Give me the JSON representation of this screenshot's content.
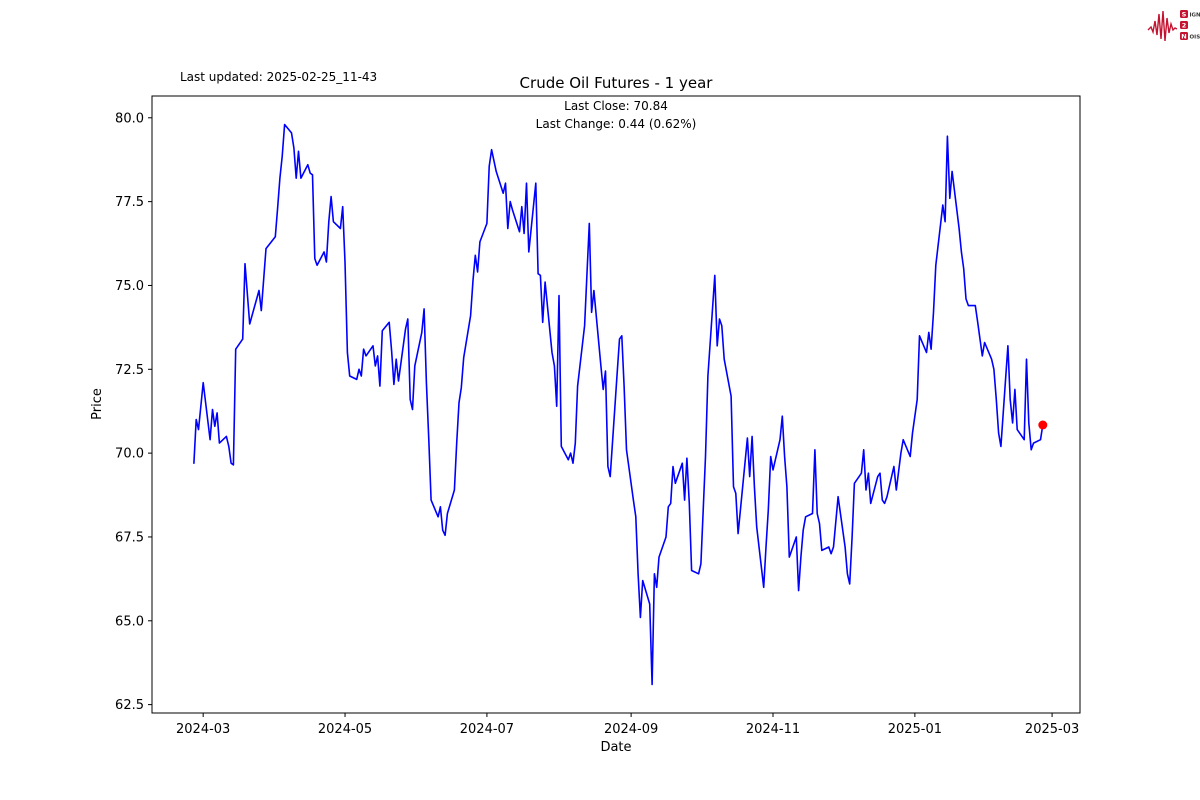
{
  "logo": {
    "color": "#c41230",
    "text_color": "#3a3a3a",
    "rows": [
      {
        "boxed": "S",
        "rest": "IGNAL"
      },
      {
        "boxed": "2",
        "rest": ""
      },
      {
        "boxed": "N",
        "rest": "OISE"
      }
    ]
  },
  "header": {
    "last_updated": "Last updated: 2025-02-25_11-43"
  },
  "chart_data": {
    "type": "line",
    "title": "Crude Oil Futures - 1 year",
    "annotation_line1": "Last Close: 70.84",
    "annotation_line2": "Last Change: 0.44 (0.62%)",
    "xlabel": "Date",
    "ylabel": "Price",
    "legend": "none",
    "grid": false,
    "line_color": "#0000ff",
    "marker_color": "#ff0000",
    "axis_color": "#000000",
    "ylim": [
      62.25,
      80.65
    ],
    "x_start": "2024-02-08",
    "x_end": "2025-03-13",
    "y_ticks": [
      62.5,
      65.0,
      67.5,
      70.0,
      72.5,
      75.0,
      77.5,
      80.0
    ],
    "x_ticks": [
      {
        "date": "2024-03-01",
        "label": "2024-03"
      },
      {
        "date": "2024-05-01",
        "label": "2024-05"
      },
      {
        "date": "2024-07-01",
        "label": "2024-07"
      },
      {
        "date": "2024-09-01",
        "label": "2024-09"
      },
      {
        "date": "2024-11-01",
        "label": "2024-11"
      },
      {
        "date": "2025-01-01",
        "label": "2025-01"
      },
      {
        "date": "2025-03-01",
        "label": "2025-03"
      }
    ],
    "last_close": 70.84,
    "last_change": 0.44,
    "last_change_pct": "0.62%",
    "series": [
      {
        "name": "Close",
        "points": [
          [
            "2024-02-26",
            69.7
          ],
          [
            "2024-02-27",
            71.0
          ],
          [
            "2024-02-28",
            70.7
          ],
          [
            "2024-03-01",
            72.1
          ],
          [
            "2024-03-04",
            70.4
          ],
          [
            "2024-03-05",
            71.3
          ],
          [
            "2024-03-06",
            70.8
          ],
          [
            "2024-03-07",
            71.2
          ],
          [
            "2024-03-08",
            70.3
          ],
          [
            "2024-03-11",
            70.5
          ],
          [
            "2024-03-12",
            70.2
          ],
          [
            "2024-03-13",
            69.7
          ],
          [
            "2024-03-14",
            69.65
          ],
          [
            "2024-03-15",
            73.1
          ],
          [
            "2024-03-18",
            73.4
          ],
          [
            "2024-03-19",
            75.65
          ],
          [
            "2024-03-21",
            73.85
          ],
          [
            "2024-03-25",
            74.85
          ],
          [
            "2024-03-26",
            74.25
          ],
          [
            "2024-03-28",
            76.1
          ],
          [
            "2024-04-01",
            76.45
          ],
          [
            "2024-04-02",
            77.3
          ],
          [
            "2024-04-03",
            78.2
          ],
          [
            "2024-04-04",
            78.85
          ],
          [
            "2024-04-05",
            79.8
          ],
          [
            "2024-04-08",
            79.55
          ],
          [
            "2024-04-09",
            79.1
          ],
          [
            "2024-04-10",
            78.2
          ],
          [
            "2024-04-11",
            79.0
          ],
          [
            "2024-04-12",
            78.2
          ],
          [
            "2024-04-15",
            78.6
          ],
          [
            "2024-04-16",
            78.35
          ],
          [
            "2024-04-17",
            78.3
          ],
          [
            "2024-04-18",
            75.8
          ],
          [
            "2024-04-19",
            75.6
          ],
          [
            "2024-04-22",
            76.0
          ],
          [
            "2024-04-23",
            75.7
          ],
          [
            "2024-04-24",
            76.9
          ],
          [
            "2024-04-25",
            77.65
          ],
          [
            "2024-04-26",
            76.9
          ],
          [
            "2024-04-29",
            76.7
          ],
          [
            "2024-04-30",
            77.35
          ],
          [
            "2024-05-01",
            75.7
          ],
          [
            "2024-05-02",
            73.0
          ],
          [
            "2024-05-03",
            72.3
          ],
          [
            "2024-05-06",
            72.2
          ],
          [
            "2024-05-07",
            72.5
          ],
          [
            "2024-05-08",
            72.3
          ],
          [
            "2024-05-09",
            73.1
          ],
          [
            "2024-05-10",
            72.9
          ],
          [
            "2024-05-13",
            73.2
          ],
          [
            "2024-05-14",
            72.6
          ],
          [
            "2024-05-15",
            72.9
          ],
          [
            "2024-05-16",
            72.0
          ],
          [
            "2024-05-17",
            73.65
          ],
          [
            "2024-05-20",
            73.9
          ],
          [
            "2024-05-21",
            73.05
          ],
          [
            "2024-05-22",
            72.05
          ],
          [
            "2024-05-23",
            72.8
          ],
          [
            "2024-05-24",
            72.15
          ],
          [
            "2024-05-27",
            73.7
          ],
          [
            "2024-05-28",
            74.0
          ],
          [
            "2024-05-29",
            71.6
          ],
          [
            "2024-05-30",
            71.3
          ],
          [
            "2024-05-31",
            72.6
          ],
          [
            "2024-06-03",
            73.6
          ],
          [
            "2024-06-04",
            74.3
          ],
          [
            "2024-06-05",
            72.1
          ],
          [
            "2024-06-06",
            70.4
          ],
          [
            "2024-06-07",
            68.6
          ],
          [
            "2024-06-10",
            68.1
          ],
          [
            "2024-06-11",
            68.4
          ],
          [
            "2024-06-12",
            67.7
          ],
          [
            "2024-06-13",
            67.55
          ],
          [
            "2024-06-14",
            68.2
          ],
          [
            "2024-06-17",
            68.9
          ],
          [
            "2024-06-18",
            70.3
          ],
          [
            "2024-06-19",
            71.5
          ],
          [
            "2024-06-20",
            71.95
          ],
          [
            "2024-06-21",
            72.85
          ],
          [
            "2024-06-24",
            74.1
          ],
          [
            "2024-06-25",
            75.15
          ],
          [
            "2024-06-26",
            75.9
          ],
          [
            "2024-06-27",
            75.4
          ],
          [
            "2024-06-28",
            76.3
          ],
          [
            "2024-07-01",
            76.85
          ],
          [
            "2024-07-02",
            78.55
          ],
          [
            "2024-07-03",
            79.05
          ],
          [
            "2024-07-05",
            78.4
          ],
          [
            "2024-07-08",
            77.75
          ],
          [
            "2024-07-09",
            78.05
          ],
          [
            "2024-07-10",
            76.7
          ],
          [
            "2024-07-11",
            77.5
          ],
          [
            "2024-07-12",
            77.25
          ],
          [
            "2024-07-15",
            76.6
          ],
          [
            "2024-07-16",
            77.35
          ],
          [
            "2024-07-17",
            76.55
          ],
          [
            "2024-07-18",
            78.05
          ],
          [
            "2024-07-19",
            76.0
          ],
          [
            "2024-07-22",
            78.05
          ],
          [
            "2024-07-23",
            75.35
          ],
          [
            "2024-07-24",
            75.3
          ],
          [
            "2024-07-25",
            73.9
          ],
          [
            "2024-07-26",
            75.1
          ],
          [
            "2024-07-29",
            73.0
          ],
          [
            "2024-07-30",
            72.6
          ],
          [
            "2024-07-31",
            71.4
          ],
          [
            "2024-08-01",
            74.7
          ],
          [
            "2024-08-02",
            70.2
          ],
          [
            "2024-08-05",
            69.8
          ],
          [
            "2024-08-06",
            70.0
          ],
          [
            "2024-08-07",
            69.7
          ],
          [
            "2024-08-08",
            70.3
          ],
          [
            "2024-08-09",
            72.0
          ],
          [
            "2024-08-12",
            73.8
          ],
          [
            "2024-08-13",
            75.3
          ],
          [
            "2024-08-14",
            76.85
          ],
          [
            "2024-08-15",
            74.2
          ],
          [
            "2024-08-16",
            74.85
          ],
          [
            "2024-08-19",
            72.6
          ],
          [
            "2024-08-20",
            71.9
          ],
          [
            "2024-08-21",
            72.45
          ],
          [
            "2024-08-22",
            69.6
          ],
          [
            "2024-08-23",
            69.3
          ],
          [
            "2024-08-26",
            72.4
          ],
          [
            "2024-08-27",
            73.4
          ],
          [
            "2024-08-28",
            73.5
          ],
          [
            "2024-08-29",
            72.0
          ],
          [
            "2024-08-30",
            70.1
          ],
          [
            "2024-09-02",
            68.6
          ],
          [
            "2024-09-03",
            68.1
          ],
          [
            "2024-09-04",
            66.4
          ],
          [
            "2024-09-05",
            65.1
          ],
          [
            "2024-09-06",
            66.2
          ],
          [
            "2024-09-09",
            65.5
          ],
          [
            "2024-09-10",
            63.1
          ],
          [
            "2024-09-11",
            66.4
          ],
          [
            "2024-09-12",
            66.0
          ],
          [
            "2024-09-13",
            66.9
          ],
          [
            "2024-09-16",
            67.5
          ],
          [
            "2024-09-17",
            68.4
          ],
          [
            "2024-09-18",
            68.5
          ],
          [
            "2024-09-19",
            69.6
          ],
          [
            "2024-09-20",
            69.1
          ],
          [
            "2024-09-23",
            69.7
          ],
          [
            "2024-09-24",
            68.6
          ],
          [
            "2024-09-25",
            69.85
          ],
          [
            "2024-09-26",
            68.5
          ],
          [
            "2024-09-27",
            66.5
          ],
          [
            "2024-09-30",
            66.4
          ],
          [
            "2024-10-01",
            66.7
          ],
          [
            "2024-10-02",
            68.3
          ],
          [
            "2024-10-03",
            69.9
          ],
          [
            "2024-10-04",
            72.3
          ],
          [
            "2024-10-07",
            75.3
          ],
          [
            "2024-10-08",
            73.2
          ],
          [
            "2024-10-09",
            74.0
          ],
          [
            "2024-10-10",
            73.8
          ],
          [
            "2024-10-11",
            72.8
          ],
          [
            "2024-10-14",
            71.7
          ],
          [
            "2024-10-15",
            69.0
          ],
          [
            "2024-10-16",
            68.8
          ],
          [
            "2024-10-17",
            67.6
          ],
          [
            "2024-10-18",
            68.3
          ],
          [
            "2024-10-21",
            70.45
          ],
          [
            "2024-10-22",
            69.3
          ],
          [
            "2024-10-23",
            70.5
          ],
          [
            "2024-10-24",
            69.0
          ],
          [
            "2024-10-25",
            67.8
          ],
          [
            "2024-10-28",
            66.0
          ],
          [
            "2024-10-29",
            67.2
          ],
          [
            "2024-10-30",
            68.3
          ],
          [
            "2024-10-31",
            69.9
          ],
          [
            "2024-11-01",
            69.5
          ],
          [
            "2024-11-04",
            70.4
          ],
          [
            "2024-11-05",
            71.1
          ],
          [
            "2024-11-06",
            69.9
          ],
          [
            "2024-11-07",
            69.0
          ],
          [
            "2024-11-08",
            66.9
          ],
          [
            "2024-11-11",
            67.5
          ],
          [
            "2024-11-12",
            65.9
          ],
          [
            "2024-11-13",
            66.9
          ],
          [
            "2024-11-14",
            67.7
          ],
          [
            "2024-11-15",
            68.1
          ],
          [
            "2024-11-18",
            68.2
          ],
          [
            "2024-11-19",
            70.1
          ],
          [
            "2024-11-20",
            68.2
          ],
          [
            "2024-11-21",
            67.9
          ],
          [
            "2024-11-22",
            67.1
          ],
          [
            "2024-11-25",
            67.2
          ],
          [
            "2024-11-26",
            67.0
          ],
          [
            "2024-11-27",
            67.2
          ],
          [
            "2024-11-29",
            68.7
          ],
          [
            "2024-12-02",
            67.2
          ],
          [
            "2024-12-03",
            66.4
          ],
          [
            "2024-12-04",
            66.1
          ],
          [
            "2024-12-05",
            67.5
          ],
          [
            "2024-12-06",
            69.1
          ],
          [
            "2024-12-09",
            69.4
          ],
          [
            "2024-12-10",
            70.1
          ],
          [
            "2024-12-11",
            68.9
          ],
          [
            "2024-12-12",
            69.4
          ],
          [
            "2024-12-13",
            68.5
          ],
          [
            "2024-12-16",
            69.3
          ],
          [
            "2024-12-17",
            69.4
          ],
          [
            "2024-12-18",
            68.6
          ],
          [
            "2024-12-19",
            68.5
          ],
          [
            "2024-12-20",
            68.7
          ],
          [
            "2024-12-23",
            69.6
          ],
          [
            "2024-12-24",
            68.9
          ],
          [
            "2024-12-26",
            70.0
          ],
          [
            "2024-12-27",
            70.4
          ],
          [
            "2024-12-30",
            69.9
          ],
          [
            "2024-12-31",
            70.6
          ],
          [
            "2025-01-02",
            71.6
          ],
          [
            "2025-01-03",
            73.5
          ],
          [
            "2025-01-06",
            73.0
          ],
          [
            "2025-01-07",
            73.6
          ],
          [
            "2025-01-08",
            73.1
          ],
          [
            "2025-01-09",
            74.2
          ],
          [
            "2025-01-10",
            75.6
          ],
          [
            "2025-01-13",
            77.4
          ],
          [
            "2025-01-14",
            76.9
          ],
          [
            "2025-01-15",
            79.45
          ],
          [
            "2025-01-16",
            77.6
          ],
          [
            "2025-01-17",
            78.4
          ],
          [
            "2025-01-20",
            76.7
          ],
          [
            "2025-01-21",
            76.0
          ],
          [
            "2025-01-22",
            75.5
          ],
          [
            "2025-01-23",
            74.6
          ],
          [
            "2025-01-24",
            74.4
          ],
          [
            "2025-01-27",
            74.4
          ],
          [
            "2025-01-28",
            73.9
          ],
          [
            "2025-01-29",
            73.4
          ],
          [
            "2025-01-30",
            72.9
          ],
          [
            "2025-01-31",
            73.3
          ],
          [
            "2025-02-03",
            72.8
          ],
          [
            "2025-02-04",
            72.5
          ],
          [
            "2025-02-05",
            71.6
          ],
          [
            "2025-02-06",
            70.6
          ],
          [
            "2025-02-07",
            70.2
          ],
          [
            "2025-02-10",
            73.2
          ],
          [
            "2025-02-11",
            71.6
          ],
          [
            "2025-02-12",
            70.9
          ],
          [
            "2025-02-13",
            71.9
          ],
          [
            "2025-02-14",
            70.7
          ],
          [
            "2025-02-17",
            70.4
          ],
          [
            "2025-02-18",
            72.8
          ],
          [
            "2025-02-19",
            70.9
          ],
          [
            "2025-02-20",
            70.1
          ],
          [
            "2025-02-21",
            70.3
          ],
          [
            "2025-02-24",
            70.4
          ],
          [
            "2025-02-25",
            70.84
          ]
        ]
      }
    ]
  }
}
